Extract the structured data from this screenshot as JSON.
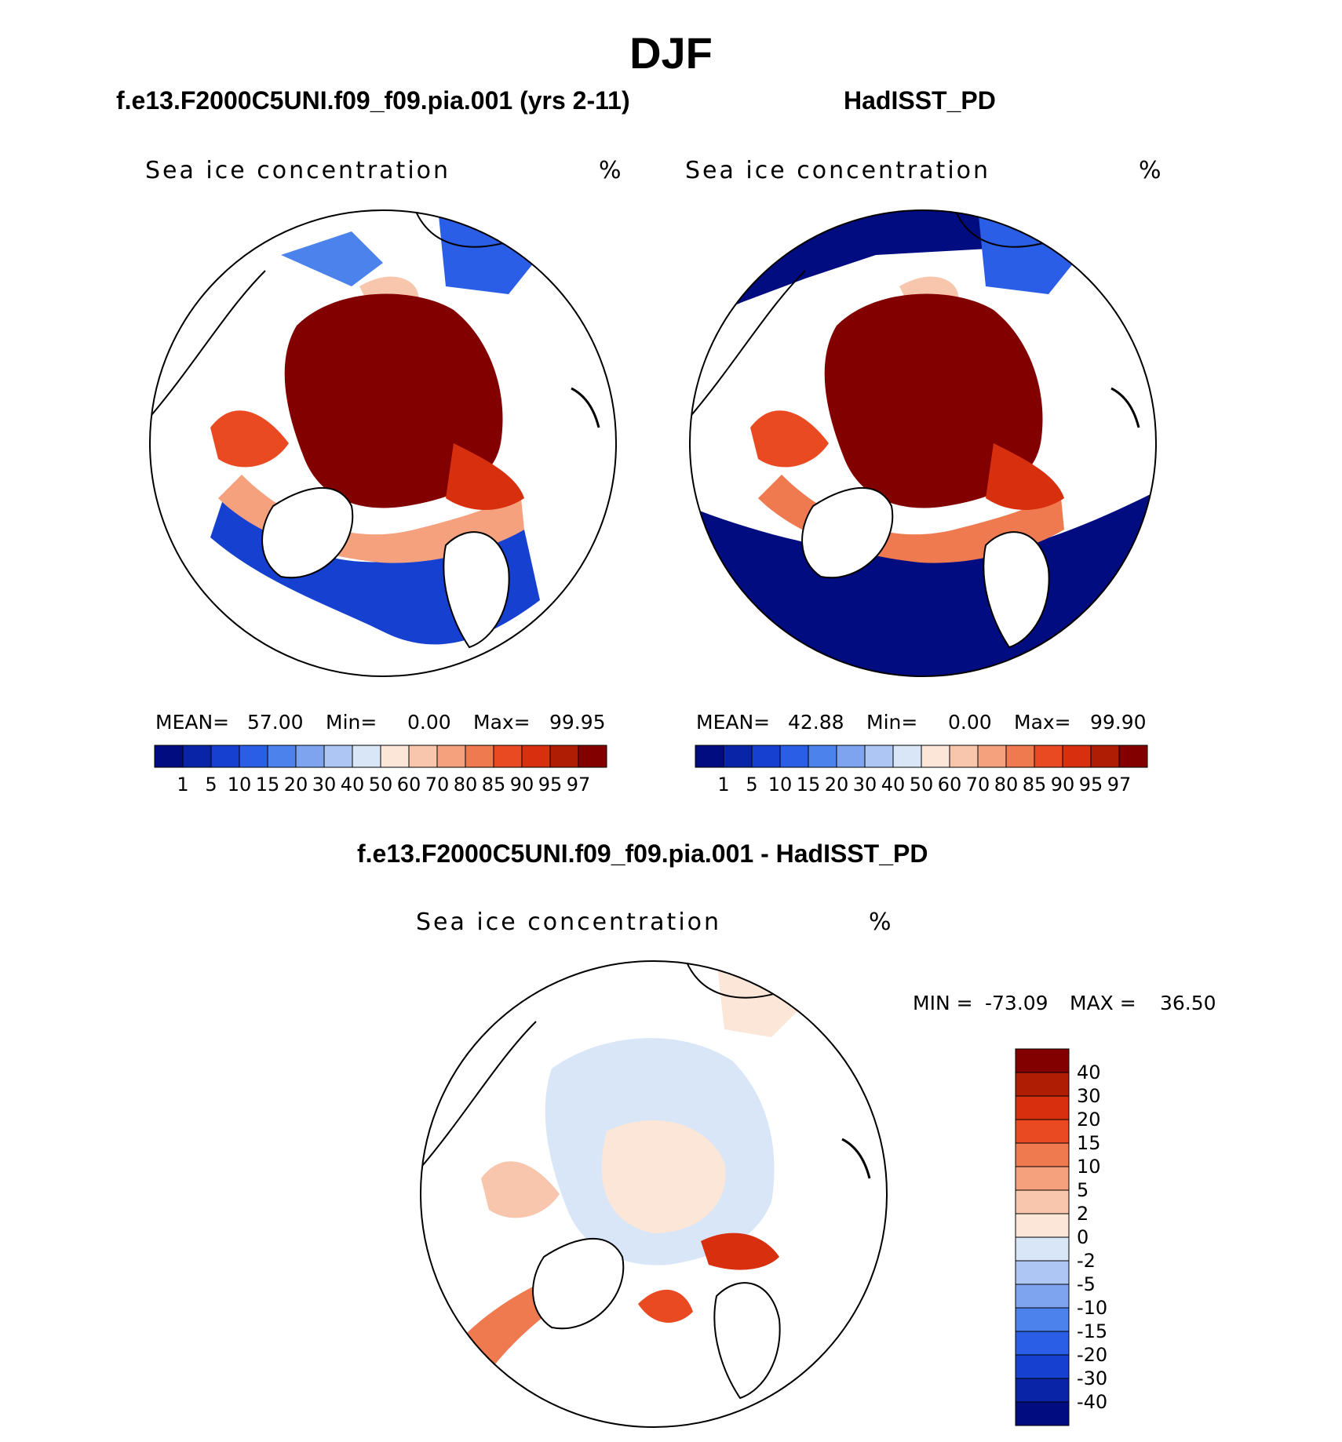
{
  "title": "DJF",
  "panels": [
    {
      "id": "model",
      "subtitle": "f.e13.F2000C5UNI.f09_f09.pia.001 (yrs 2-11)",
      "variable": "Sea ice concentration",
      "units": "%",
      "stats": {
        "mean_label": "MEAN=",
        "mean": "57.00",
        "min_label": "Min=",
        "min": "0.00",
        "max_label": "Max=",
        "max": "99.95"
      }
    },
    {
      "id": "obs",
      "subtitle": "HadISST_PD",
      "variable": "Sea ice concentration",
      "units": "%",
      "stats": {
        "mean_label": "MEAN=",
        "mean": "42.88",
        "min_label": "Min=",
        "min": "0.00",
        "max_label": "Max=",
        "max": "99.90"
      }
    },
    {
      "id": "diff",
      "subtitle": "f.e13.F2000C5UNI.f09_f09.pia.001 - HadISST_PD",
      "variable": "Sea ice concentration",
      "units": "%",
      "stats": {
        "min_label": "MIN =",
        "min": "-73.09",
        "max_label": "MAX =",
        "max": "36.50"
      }
    }
  ],
  "colorbars": {
    "absolute": {
      "levels": [
        "1",
        "5",
        "10",
        "15",
        "20",
        "30",
        "40",
        "50",
        "60",
        "70",
        "80",
        "85",
        "90",
        "95",
        "97"
      ],
      "colors": [
        "#000c80",
        "#0a24a8",
        "#1540d0",
        "#2a5ee6",
        "#4c82ec",
        "#7ea3ef",
        "#adc6f4",
        "#d9e6f8",
        "#fbe6d8",
        "#f7c6ac",
        "#f5a17e",
        "#f07a50",
        "#ea4a22",
        "#d8300e",
        "#b01d05",
        "#820000"
      ]
    },
    "difference": {
      "levels": [
        "40",
        "30",
        "20",
        "15",
        "10",
        "5",
        "2",
        "0",
        "-2",
        "-5",
        "-10",
        "-15",
        "-20",
        "-30",
        "-40"
      ],
      "colors": [
        "#820000",
        "#b01d05",
        "#d8300e",
        "#ea4a22",
        "#f07a50",
        "#f5a17e",
        "#f7c6ac",
        "#fbe6d8",
        "#d9e6f8",
        "#adc6f4",
        "#7ea3ef",
        "#4c82ec",
        "#2a5ee6",
        "#1540d0",
        "#0a24a8",
        "#000c80"
      ]
    }
  }
}
